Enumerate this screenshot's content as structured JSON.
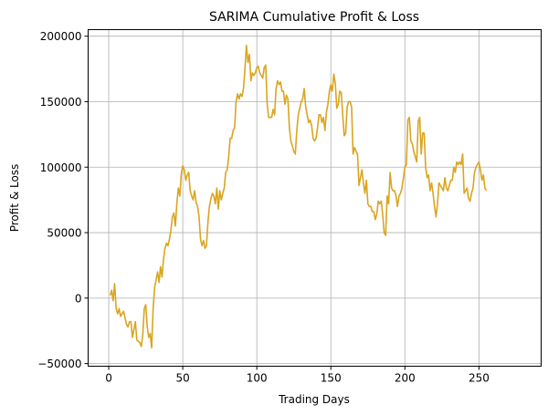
{
  "chart_data": {
    "type": "line",
    "title": "SARIMA Cumulative Profit & Loss",
    "xlabel": "Trading Days",
    "ylabel": "Profit & Loss",
    "xlim": [
      -13.9,
      292
    ],
    "ylim": [
      -52000,
      205000
    ],
    "xticks": [
      0,
      50,
      100,
      150,
      200,
      250
    ],
    "xtick_labels": [
      "0",
      "50",
      "100",
      "150",
      "200",
      "250"
    ],
    "yticks": [
      -50000,
      0,
      50000,
      100000,
      150000,
      200000
    ],
    "ytick_labels": [
      "−50000",
      "0",
      "50000",
      "100000",
      "150000",
      "200000"
    ],
    "grid": true,
    "series": [
      {
        "color": "#DAA520",
        "points": [
          [
            1,
            2000
          ],
          [
            2,
            6000
          ],
          [
            3,
            -2000
          ],
          [
            4,
            11000
          ],
          [
            5,
            -8000
          ],
          [
            6,
            -12000
          ],
          [
            7,
            -8000
          ],
          [
            8,
            -14000
          ],
          [
            9,
            -12000
          ],
          [
            10,
            -10000
          ],
          [
            11,
            -15000
          ],
          [
            12,
            -20000
          ],
          [
            13,
            -22000
          ],
          [
            14,
            -18000
          ],
          [
            15,
            -18000
          ],
          [
            16,
            -30000
          ],
          [
            17,
            -24000
          ],
          [
            18,
            -18000
          ],
          [
            19,
            -32000
          ],
          [
            20,
            -33000
          ],
          [
            21,
            -34000
          ],
          [
            22,
            -37000
          ],
          [
            23,
            -28000
          ],
          [
            24,
            -8000
          ],
          [
            25,
            -5000
          ],
          [
            26,
            -22000
          ],
          [
            27,
            -30000
          ],
          [
            28,
            -27000
          ],
          [
            29,
            -38000
          ],
          [
            30,
            -8000
          ],
          [
            31,
            8000
          ],
          [
            32,
            14000
          ],
          [
            33,
            20000
          ],
          [
            34,
            12000
          ],
          [
            35,
            24000
          ],
          [
            36,
            16000
          ],
          [
            37,
            30000
          ],
          [
            38,
            38000
          ],
          [
            39,
            42000
          ],
          [
            40,
            40000
          ],
          [
            41,
            45000
          ],
          [
            42,
            52000
          ],
          [
            43,
            62000
          ],
          [
            44,
            65000
          ],
          [
            45,
            55000
          ],
          [
            46,
            72000
          ],
          [
            47,
            84000
          ],
          [
            48,
            78000
          ],
          [
            49,
            95000
          ],
          [
            50,
            101000
          ],
          [
            51,
            98000
          ],
          [
            52,
            90000
          ],
          [
            53,
            94000
          ],
          [
            54,
            96000
          ],
          [
            55,
            82000
          ],
          [
            56,
            78000
          ],
          [
            57,
            75000
          ],
          [
            58,
            82000
          ],
          [
            59,
            73000
          ],
          [
            60,
            70000
          ],
          [
            61,
            62000
          ],
          [
            62,
            45000
          ],
          [
            63,
            40000
          ],
          [
            64,
            44000
          ],
          [
            65,
            38000
          ],
          [
            66,
            40000
          ],
          [
            67,
            58000
          ],
          [
            68,
            70000
          ],
          [
            69,
            76000
          ],
          [
            70,
            80000
          ],
          [
            71,
            78000
          ],
          [
            72,
            72000
          ],
          [
            73,
            84000
          ],
          [
            74,
            68000
          ],
          [
            75,
            82000
          ],
          [
            76,
            75000
          ],
          [
            77,
            80000
          ],
          [
            78,
            84000
          ],
          [
            79,
            96000
          ],
          [
            80,
            98000
          ],
          [
            81,
            108000
          ],
          [
            82,
            122000
          ],
          [
            83,
            122000
          ],
          [
            84,
            128000
          ],
          [
            85,
            130000
          ],
          [
            86,
            150000
          ],
          [
            87,
            156000
          ],
          [
            88,
            152000
          ],
          [
            89,
            156000
          ],
          [
            90,
            154000
          ],
          [
            91,
            160000
          ],
          [
            92,
            175000
          ],
          [
            93,
            193000
          ],
          [
            94,
            180000
          ],
          [
            95,
            186000
          ],
          [
            96,
            166000
          ],
          [
            97,
            172000
          ],
          [
            98,
            170000
          ],
          [
            99,
            172000
          ],
          [
            100,
            176000
          ],
          [
            101,
            177000
          ],
          [
            102,
            172000
          ],
          [
            103,
            170000
          ],
          [
            104,
            168000
          ],
          [
            105,
            176000
          ],
          [
            106,
            178000
          ],
          [
            107,
            148000
          ],
          [
            108,
            138000
          ],
          [
            109,
            138000
          ],
          [
            110,
            138000
          ],
          [
            111,
            144000
          ],
          [
            112,
            140000
          ],
          [
            113,
            160000
          ],
          [
            114,
            166000
          ],
          [
            115,
            163000
          ],
          [
            116,
            165000
          ],
          [
            117,
            158000
          ],
          [
            118,
            158000
          ],
          [
            119,
            148000
          ],
          [
            120,
            155000
          ],
          [
            121,
            152000
          ],
          [
            122,
            130000
          ],
          [
            123,
            120000
          ],
          [
            124,
            116000
          ],
          [
            125,
            112000
          ],
          [
            126,
            110000
          ],
          [
            127,
            128000
          ],
          [
            128,
            140000
          ],
          [
            129,
            145000
          ],
          [
            130,
            150000
          ],
          [
            131,
            152000
          ],
          [
            132,
            160000
          ],
          [
            133,
            146000
          ],
          [
            134,
            140000
          ],
          [
            135,
            134000
          ],
          [
            136,
            136000
          ],
          [
            137,
            132000
          ],
          [
            138,
            122000
          ],
          [
            139,
            120000
          ],
          [
            140,
            122000
          ],
          [
            141,
            130000
          ],
          [
            142,
            140000
          ],
          [
            143,
            140000
          ],
          [
            144,
            134000
          ],
          [
            145,
            138000
          ],
          [
            146,
            128000
          ],
          [
            147,
            142000
          ],
          [
            148,
            148000
          ],
          [
            149,
            158000
          ],
          [
            150,
            163000
          ],
          [
            151,
            158000
          ],
          [
            152,
            171000
          ],
          [
            153,
            164000
          ],
          [
            154,
            145000
          ],
          [
            155,
            148000
          ],
          [
            156,
            158000
          ],
          [
            157,
            157000
          ],
          [
            158,
            140000
          ],
          [
            159,
            124000
          ],
          [
            160,
            126000
          ],
          [
            161,
            146000
          ],
          [
            162,
            150000
          ],
          [
            163,
            150000
          ],
          [
            164,
            146000
          ],
          [
            165,
            110000
          ],
          [
            166,
            115000
          ],
          [
            167,
            112000
          ],
          [
            168,
            110000
          ],
          [
            169,
            86000
          ],
          [
            170,
            92000
          ],
          [
            171,
            98000
          ],
          [
            172,
            88000
          ],
          [
            173,
            80000
          ],
          [
            174,
            90000
          ],
          [
            175,
            72000
          ],
          [
            176,
            70000
          ],
          [
            177,
            70000
          ],
          [
            178,
            66000
          ],
          [
            179,
            66000
          ],
          [
            180,
            60000
          ],
          [
            181,
            64000
          ],
          [
            182,
            74000
          ],
          [
            183,
            72000
          ],
          [
            184,
            74000
          ],
          [
            185,
            64000
          ],
          [
            186,
            50000
          ],
          [
            187,
            48000
          ],
          [
            188,
            78000
          ],
          [
            189,
            72000
          ],
          [
            190,
            96000
          ],
          [
            191,
            84000
          ],
          [
            192,
            82000
          ],
          [
            193,
            82000
          ],
          [
            194,
            78000
          ],
          [
            195,
            70000
          ],
          [
            196,
            78000
          ],
          [
            197,
            80000
          ],
          [
            198,
            84000
          ],
          [
            199,
            92000
          ],
          [
            200,
            100000
          ],
          [
            201,
            102000
          ],
          [
            202,
            136000
          ],
          [
            203,
            138000
          ],
          [
            204,
            120000
          ],
          [
            205,
            118000
          ],
          [
            206,
            112000
          ],
          [
            207,
            108000
          ],
          [
            208,
            104000
          ],
          [
            209,
            135000
          ],
          [
            210,
            138000
          ],
          [
            211,
            110000
          ],
          [
            212,
            126000
          ],
          [
            213,
            126000
          ],
          [
            214,
            100000
          ],
          [
            215,
            92000
          ],
          [
            216,
            94000
          ],
          [
            217,
            82000
          ],
          [
            218,
            88000
          ],
          [
            219,
            80000
          ],
          [
            220,
            70000
          ],
          [
            221,
            62000
          ],
          [
            222,
            72000
          ],
          [
            223,
            88000
          ],
          [
            224,
            86000
          ],
          [
            225,
            84000
          ],
          [
            226,
            82000
          ],
          [
            227,
            92000
          ],
          [
            228,
            84000
          ],
          [
            229,
            82000
          ],
          [
            230,
            86000
          ],
          [
            231,
            90000
          ],
          [
            232,
            90000
          ],
          [
            233,
            100000
          ],
          [
            234,
            96000
          ],
          [
            235,
            104000
          ],
          [
            236,
            102000
          ],
          [
            237,
            104000
          ],
          [
            238,
            102000
          ],
          [
            239,
            110000
          ],
          [
            240,
            80000
          ],
          [
            241,
            82000
          ],
          [
            242,
            84000
          ],
          [
            243,
            76000
          ],
          [
            244,
            74000
          ],
          [
            245,
            80000
          ],
          [
            246,
            84000
          ],
          [
            247,
            96000
          ],
          [
            248,
            100000
          ],
          [
            249,
            102000
          ],
          [
            250,
            104000
          ],
          [
            251,
            98000
          ],
          [
            252,
            90000
          ],
          [
            253,
            94000
          ],
          [
            254,
            84000
          ],
          [
            255,
            82000
          ]
        ]
      }
    ]
  }
}
